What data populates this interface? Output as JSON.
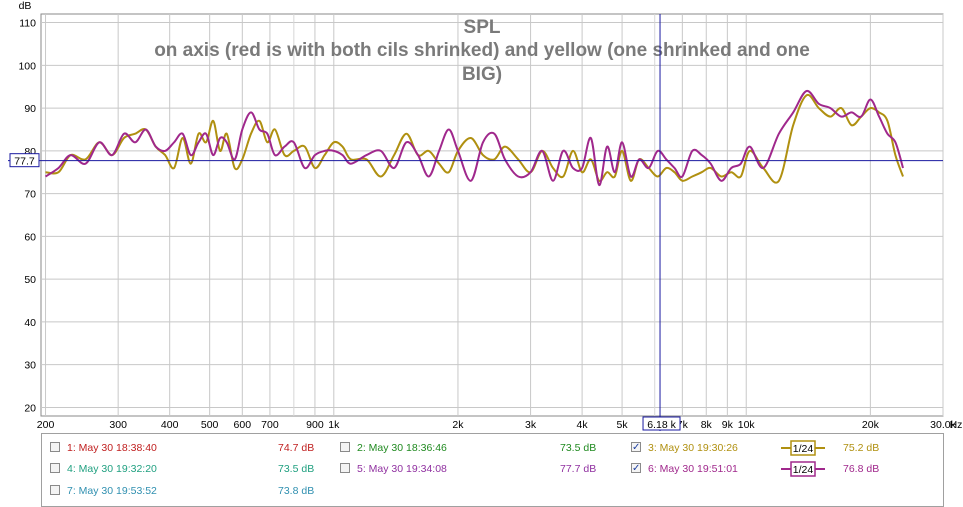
{
  "chart_data": {
    "type": "line",
    "title": "SPL",
    "subtitle_lines": [
      "on axis (red is with both cils shrinked) and yellow (one shrinked and one",
      "BIG)"
    ],
    "y_unit": "dB",
    "x_unit": "Hz",
    "x_scale": "log",
    "xlim": [
      195,
      30000
    ],
    "ylim": [
      18,
      112
    ],
    "y_ticks": [
      20,
      30,
      40,
      50,
      60,
      70,
      80,
      90,
      100,
      110
    ],
    "x_ticks": [
      {
        "v": 200,
        "label": "200"
      },
      {
        "v": 300,
        "label": "300"
      },
      {
        "v": 400,
        "label": "400"
      },
      {
        "v": 500,
        "label": "500"
      },
      {
        "v": 600,
        "label": "600"
      },
      {
        "v": 700,
        "label": "700"
      },
      {
        "v": 900,
        "label": "900"
      },
      {
        "v": 1000,
        "label": "1k"
      },
      {
        "v": 2000,
        "label": "2k"
      },
      {
        "v": 3000,
        "label": "3k"
      },
      {
        "v": 4000,
        "label": "4k"
      },
      {
        "v": 5000,
        "label": "5k"
      },
      {
        "v": 7000,
        "label": "7k"
      },
      {
        "v": 8000,
        "label": "8k"
      },
      {
        "v": 9000,
        "label": "9k"
      },
      {
        "v": 10000,
        "label": "10k"
      },
      {
        "v": 20000,
        "label": "20k"
      },
      {
        "v": 30000,
        "label": "30.0k"
      }
    ],
    "minor_gridlines_hz": [
      800,
      6000
    ],
    "grid": true,
    "cursor": {
      "x": 6180,
      "y": 77.7,
      "x_label": "6.18 k",
      "y_label": "77.7"
    },
    "series": [
      {
        "id": "yellow",
        "color": "#b09010",
        "x": [
          200,
          215,
          230,
          250,
          270,
          290,
          310,
          330,
          350,
          370,
          390,
          410,
          430,
          450,
          470,
          490,
          510,
          530,
          550,
          575,
          600,
          630,
          660,
          690,
          720,
          760,
          800,
          850,
          900,
          950,
          1000,
          1050,
          1100,
          1200,
          1300,
          1400,
          1500,
          1600,
          1700,
          1800,
          1900,
          2000,
          2150,
          2300,
          2450,
          2600,
          2800,
          3000,
          3200,
          3400,
          3600,
          3800,
          4000,
          4200,
          4400,
          4600,
          4800,
          5000,
          5250,
          5500,
          5800,
          6100,
          6400,
          6700,
          7000,
          7400,
          7800,
          8200,
          8700,
          9200,
          9700,
          10200,
          11000,
          12000,
          13000,
          14000,
          15000,
          16000,
          17000,
          18000,
          19000,
          20000,
          21000,
          22000,
          23000,
          24000
        ],
        "y": [
          75,
          75,
          79,
          78,
          82,
          79,
          83,
          84,
          85,
          81,
          79,
          76,
          83,
          77,
          84,
          82,
          87,
          80,
          84,
          76,
          78,
          84,
          87,
          82,
          85,
          79,
          80,
          81,
          76,
          79,
          82,
          81,
          78,
          78,
          74,
          79,
          84,
          79,
          80,
          77,
          75,
          80,
          83,
          79,
          78,
          81,
          78,
          75,
          80,
          76,
          74,
          80,
          75,
          78,
          73,
          75,
          74,
          80,
          73,
          78,
          76,
          74,
          76,
          75,
          73,
          74,
          75,
          76,
          74,
          75,
          74,
          80,
          76,
          73,
          86,
          93,
          90,
          88,
          90,
          86,
          88,
          90,
          89,
          87,
          79,
          74
        ]
      },
      {
        "id": "purple",
        "color": "#a0288c",
        "x": [
          200,
          215,
          230,
          250,
          270,
          290,
          310,
          330,
          350,
          370,
          390,
          410,
          430,
          450,
          470,
          490,
          510,
          530,
          550,
          575,
          600,
          630,
          660,
          690,
          720,
          760,
          800,
          850,
          900,
          950,
          1000,
          1050,
          1100,
          1200,
          1300,
          1400,
          1500,
          1600,
          1700,
          1800,
          1900,
          2000,
          2150,
          2300,
          2450,
          2600,
          2800,
          3000,
          3200,
          3400,
          3600,
          3800,
          4000,
          4200,
          4400,
          4600,
          4800,
          5000,
          5250,
          5500,
          5800,
          6100,
          6400,
          6700,
          7000,
          7400,
          7800,
          8200,
          8700,
          9200,
          9700,
          10200,
          11000,
          12000,
          13000,
          14000,
          15000,
          16000,
          17000,
          18000,
          19000,
          20000,
          21000,
          22000,
          23000,
          24000
        ],
        "y": [
          74,
          76,
          79,
          77,
          82,
          79,
          84,
          82,
          85,
          81,
          80,
          82,
          84,
          79,
          82,
          84,
          79,
          83,
          82,
          78,
          85,
          89,
          85,
          84,
          79,
          81,
          82,
          76,
          79,
          80,
          80,
          79,
          77,
          79,
          80,
          76,
          82,
          79,
          74,
          80,
          85,
          80,
          73,
          82,
          84,
          78,
          74,
          75,
          80,
          73,
          80,
          76,
          76,
          83,
          72,
          81,
          75,
          82,
          74,
          78,
          76,
          80,
          78,
          76,
          74,
          80,
          79,
          77,
          73,
          76,
          77,
          81,
          76,
          84,
          89,
          94,
          91,
          90,
          88,
          89,
          88,
          92,
          88,
          84,
          82,
          76
        ]
      }
    ]
  },
  "legend": {
    "items": [
      {
        "label": "1: May 30 18:38:40",
        "value": "74.7 dB",
        "color": "#c02020",
        "checked": false,
        "smoothing": ""
      },
      {
        "label": "2: May 30 18:36:46",
        "value": "73.5 dB",
        "color": "#208a20",
        "checked": false,
        "smoothing": ""
      },
      {
        "label": "3: May 30 19:30:26",
        "value": "75.2 dB",
        "color": "#b09010",
        "checked": true,
        "smoothing": "1/24"
      },
      {
        "label": "4: May 30 19:32:20",
        "value": "73.5 dB",
        "color": "#20a080",
        "checked": false,
        "smoothing": ""
      },
      {
        "label": "5: May 30 19:34:08",
        "value": "77.7 dB",
        "color": "#9030a0",
        "checked": false,
        "smoothing": ""
      },
      {
        "label": "6: May 30 19:51:01",
        "value": "76.8 dB",
        "color": "#a0288c",
        "checked": true,
        "smoothing": "1/24"
      },
      {
        "label": "7: May 30 19:53:52",
        "value": "73.8 dB",
        "color": "#3090b0",
        "checked": false,
        "smoothing": ""
      }
    ]
  }
}
